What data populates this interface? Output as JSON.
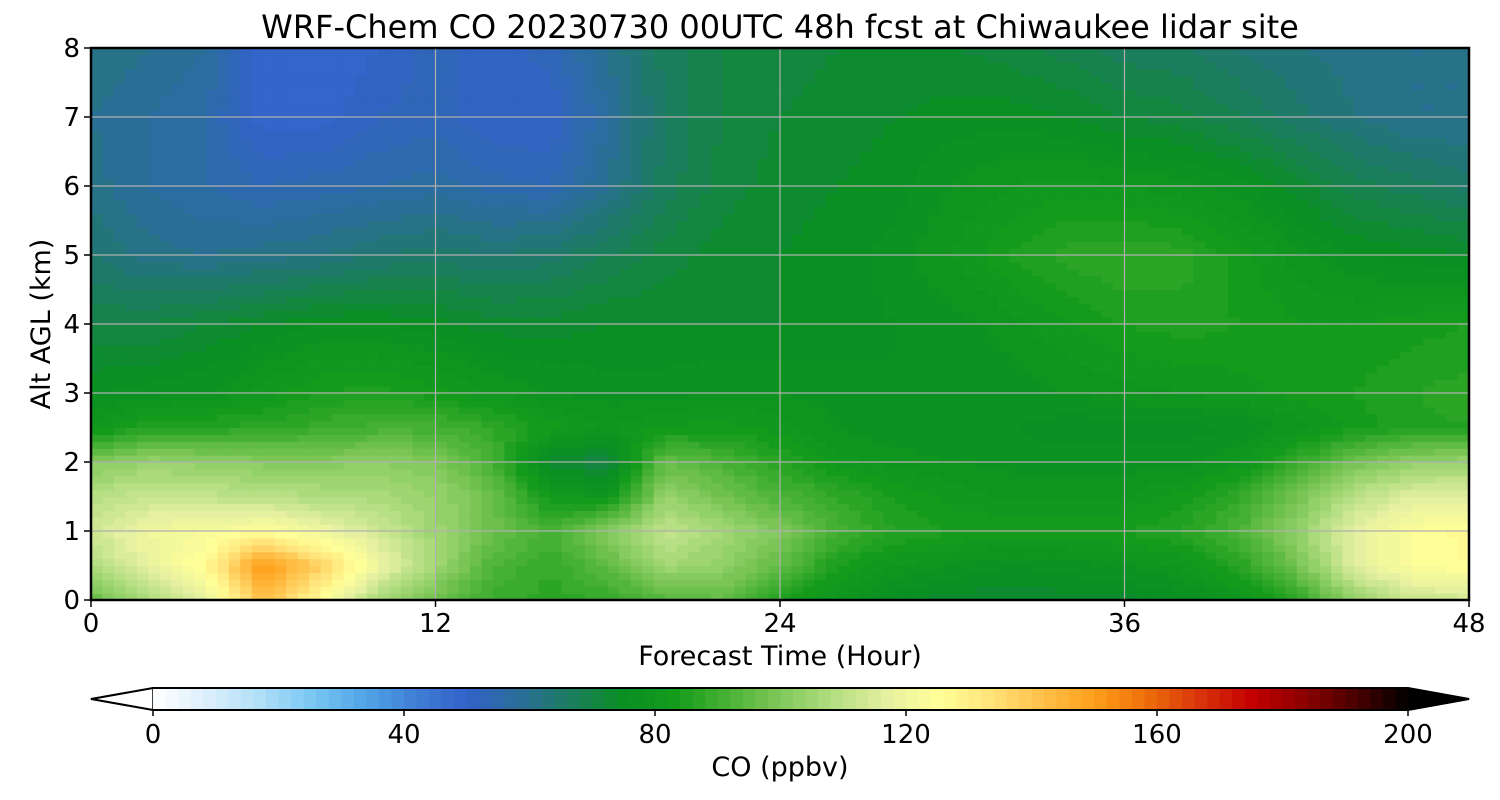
{
  "chart_data": {
    "type": "heatmap",
    "title": "WRF-Chem CO  20230730 00UTC 48h fcst at Chiwaukee lidar site",
    "xlabel": "Forecast Time (Hour)",
    "ylabel": "Alt AGL (km)",
    "xlim": [
      0,
      48
    ],
    "ylim": [
      0,
      8
    ],
    "x_ticks": [
      "0",
      "12",
      "24",
      "36",
      "48"
    ],
    "y_ticks": [
      "0",
      "1",
      "2",
      "3",
      "4",
      "5",
      "6",
      "7",
      "8"
    ],
    "grid": true,
    "colorbar": {
      "label": "CO  (ppbv)",
      "range": [
        0,
        200
      ],
      "ticks": [
        "0",
        "40",
        "80",
        "120",
        "160",
        "200"
      ],
      "extend": "both",
      "levels": 100
    },
    "x": [
      0,
      2,
      4,
      6,
      8,
      10,
      12,
      14,
      16,
      18,
      20,
      22,
      24,
      26,
      28,
      30,
      32,
      34,
      36,
      38,
      40,
      42,
      44,
      46,
      48
    ],
    "y": [
      0,
      0.5,
      1,
      1.5,
      2,
      2.5,
      3,
      4,
      5,
      6,
      7,
      8
    ],
    "z": [
      [
        95,
        108,
        118,
        142,
        126,
        106,
        96,
        89,
        87,
        88,
        93,
        96,
        84,
        79,
        74,
        73,
        72,
        73,
        73,
        75,
        79,
        87,
        103,
        112,
        113
      ],
      [
        108,
        118,
        127,
        152,
        138,
        120,
        106,
        92,
        88,
        95,
        106,
        103,
        95,
        84,
        80,
        78,
        76,
        77,
        78,
        80,
        86,
        98,
        116,
        124,
        126
      ],
      [
        113,
        120,
        122,
        125,
        120,
        113,
        105,
        97,
        91,
        101,
        111,
        106,
        100,
        91,
        86,
        84,
        83,
        83,
        84,
        86,
        92,
        103,
        117,
        124,
        127
      ],
      [
        109,
        112,
        111,
        110,
        108,
        107,
        104,
        97,
        82,
        80,
        104,
        98,
        92,
        88,
        84,
        81,
        80,
        80,
        80,
        83,
        88,
        98,
        110,
        116,
        117
      ],
      [
        101,
        104,
        103,
        101,
        101,
        102,
        100,
        91,
        72,
        70,
        96,
        92,
        86,
        81,
        79,
        78,
        77,
        77,
        77,
        77,
        80,
        88,
        98,
        103,
        104
      ],
      [
        80,
        86,
        86,
        87,
        89,
        91,
        91,
        88,
        83,
        80,
        82,
        83,
        81,
        78,
        77,
        76,
        76,
        75,
        75,
        75,
        76,
        79,
        83,
        85,
        86
      ],
      [
        76,
        77,
        78,
        81,
        84,
        85,
        83,
        80,
        78,
        77,
        77,
        78,
        78,
        77,
        76,
        76,
        77,
        78,
        79,
        80,
        81,
        83,
        84,
        86,
        87
      ],
      [
        70,
        70,
        72,
        74,
        76,
        76,
        75,
        73,
        73,
        74,
        74,
        74,
        74,
        75,
        76,
        77,
        79,
        82,
        84,
        85,
        84,
        82,
        82,
        83,
        84
      ],
      [
        64,
        61,
        60,
        61,
        62,
        64,
        65,
        64,
        65,
        68,
        71,
        73,
        74,
        75,
        77,
        80,
        84,
        87,
        88,
        87,
        83,
        79,
        76,
        75,
        74
      ],
      [
        61,
        58,
        56,
        54,
        55,
        56,
        57,
        55,
        54,
        60,
        67,
        71,
        73,
        74,
        75,
        78,
        80,
        81,
        80,
        79,
        77,
        73,
        69,
        67,
        65
      ],
      [
        60,
        58,
        56,
        49,
        49,
        52,
        53,
        50,
        50,
        58,
        66,
        70,
        72,
        73,
        74,
        75,
        75,
        74,
        72,
        71,
        68,
        65,
        62,
        60,
        60
      ],
      [
        62,
        60,
        58,
        49,
        48,
        50,
        53,
        51,
        53,
        60,
        67,
        70,
        71,
        72,
        72,
        72,
        71,
        69,
        67,
        66,
        64,
        62,
        61,
        60,
        60
      ]
    ],
    "colormap": [
      "#ffffff",
      "#ddeefa",
      "#b2e0f8",
      "#7cc8f3",
      "#52a7e6",
      "#3f7fd5",
      "#3262c8",
      "#2a6e9a",
      "#1c7d5e",
      "#0a8f22",
      "#149b1c",
      "#4ab236",
      "#80c85a",
      "#b3dd80",
      "#e4f0a0",
      "#ffff99",
      "#ffe47a",
      "#ffc04a",
      "#ff9f1a",
      "#ee6e0a",
      "#d9350a",
      "#c40000",
      "#8c0000",
      "#4a0000",
      "#000000"
    ]
  }
}
